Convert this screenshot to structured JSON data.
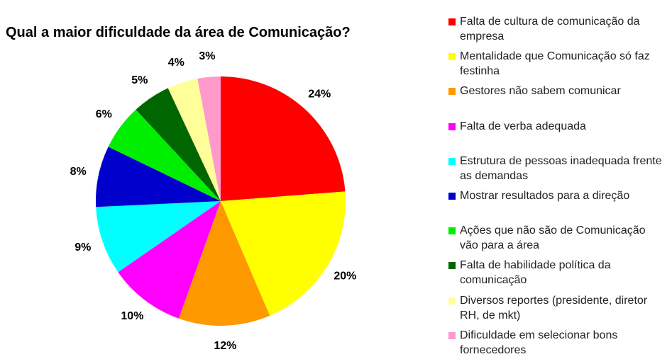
{
  "chart_data": {
    "type": "pie",
    "title": "Qual a maior dificuldade da área de Comunicação?",
    "categories": [
      "Falta de cultura de comunicação da empresa",
      "Mentalidade que Comunicação só faz festinha",
      "Gestores não sabem comunicar",
      "Falta de verba adequada",
      "Estrutura de pessoas inadequada frente as demandas",
      "Mostrar resultados para a direção",
      "Ações que não são de Comunicação vão para a área",
      "Falta de habilidade política da comunicação",
      "Diversos reportes (presidente, diretor RH, de mkt)",
      "Dificuldade em selecionar bons fornecedores"
    ],
    "values": [
      24,
      20,
      12,
      10,
      9,
      8,
      6,
      5,
      4,
      3
    ],
    "value_labels": [
      "24%",
      "20%",
      "12%",
      "10%",
      "9%",
      "8%",
      "6%",
      "5%",
      "4%",
      "3%"
    ],
    "colors": [
      "#ff0000",
      "#ffff00",
      "#ff9900",
      "#ff00ff",
      "#00ffff",
      "#0000cc",
      "#00ee00",
      "#006600",
      "#ffff99",
      "#ff99cc"
    ]
  }
}
